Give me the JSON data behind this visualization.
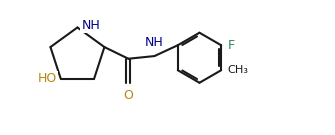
{
  "bg_color": "#ffffff",
  "bond_color": "#1a1a1a",
  "atom_colors": {
    "O": "#b8860b",
    "N": "#00008b",
    "F": "#2e8b57",
    "C": "#1a1a1a",
    "H": "#1a1a1a"
  },
  "font_size_label": 9.0,
  "line_width": 1.5,
  "figsize": [
    3.35,
    1.35
  ],
  "dpi": 100,
  "xlim": [
    0,
    10
  ],
  "ylim": [
    0,
    4
  ]
}
